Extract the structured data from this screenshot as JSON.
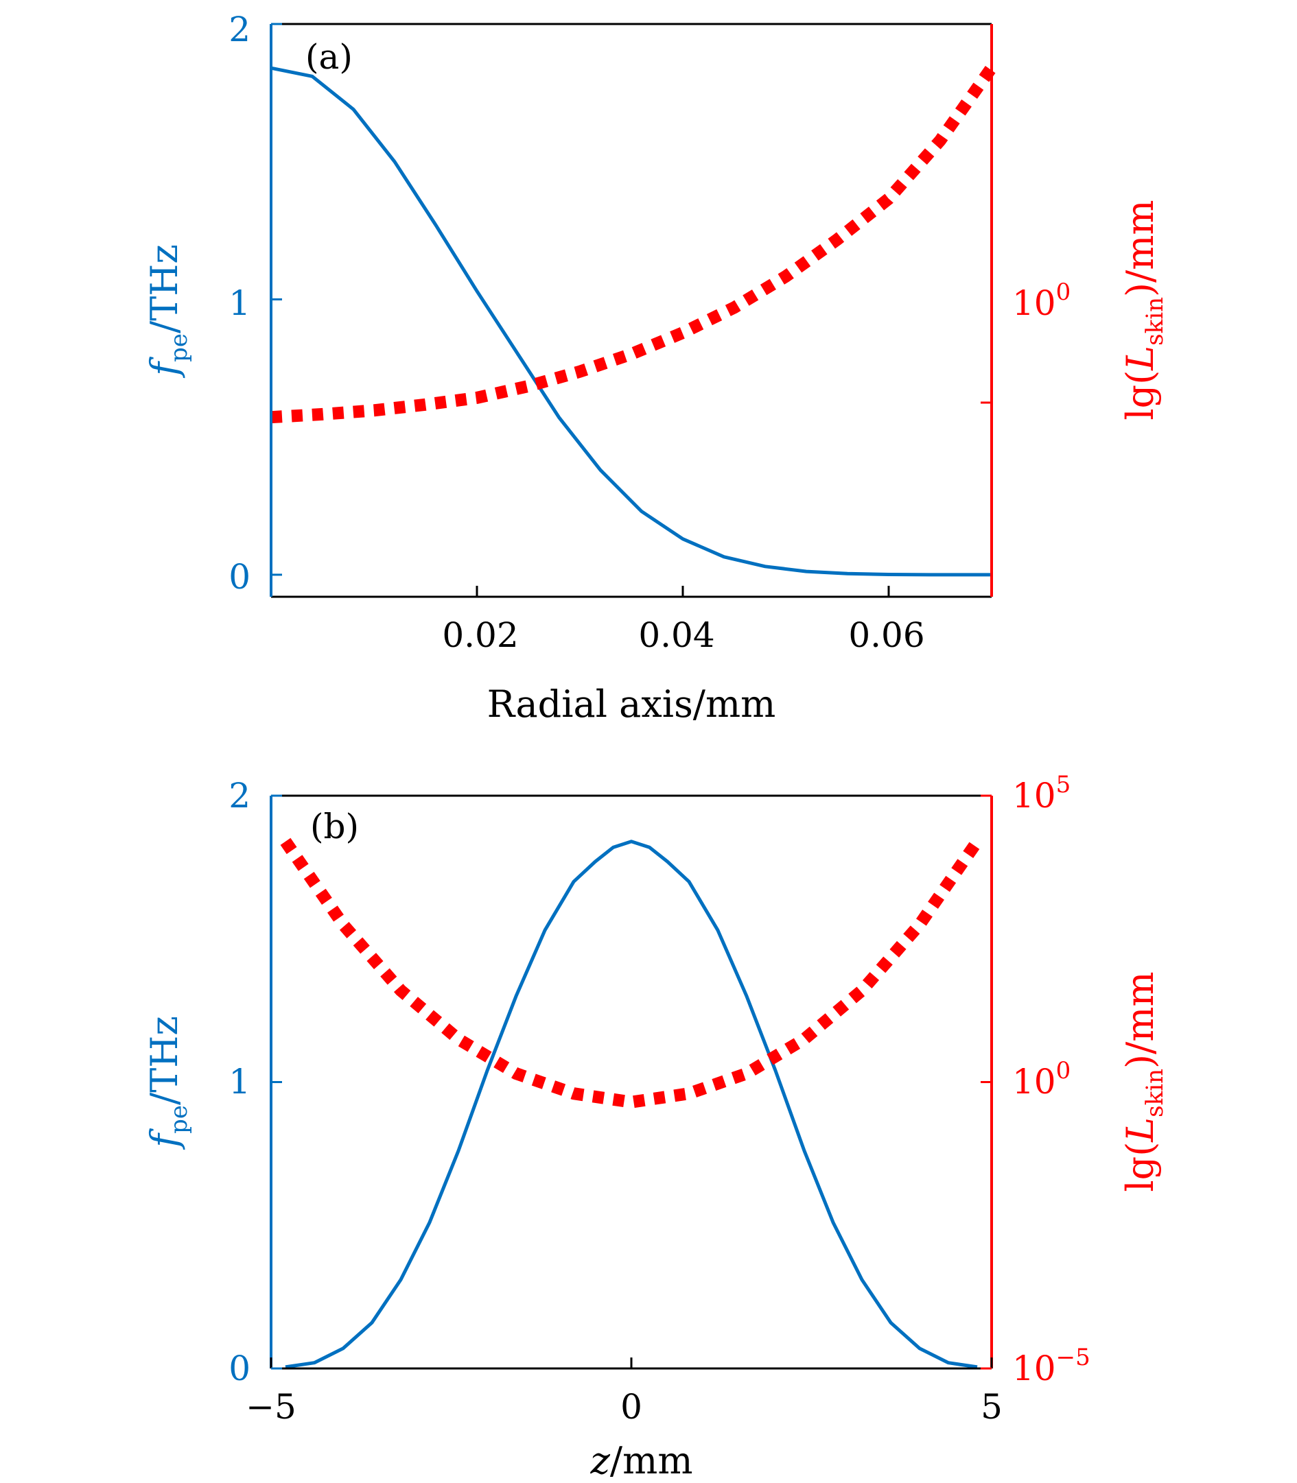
{
  "colors": {
    "fpe_line": "#0070c0",
    "lskin_line": "#ff0000",
    "frame": "#000000"
  },
  "chart_data": [
    {
      "type": "line",
      "panel_label": "(a)",
      "xlabel": "Radial axis/mm",
      "xlim": [
        0.0,
        0.07
      ],
      "xticks": [
        0.02,
        0.04,
        0.06
      ],
      "xtick_labels": [
        "0.02",
        "0.04",
        "0.06"
      ],
      "ylabel_left": {
        "main": "f",
        "sub": "pe",
        "unit": "/THz"
      },
      "ylim_left": [
        -0.08,
        2.0
      ],
      "yticks_left": [
        0,
        1,
        2
      ],
      "ytick_labels_left": [
        "0",
        "1",
        "2"
      ],
      "ylabel_right": {
        "pre": "lg(",
        "main": "L",
        "sub": "skin",
        "post": ")/mm"
      },
      "yscale_right": "log",
      "ylim_right_log10": [
        -2.0,
        3.9
      ],
      "yticks_right_log10": [
        0
      ],
      "ytick_labels_right": [
        {
          "base": "10",
          "exp": "0"
        }
      ],
      "series": [
        {
          "name": "f_pe",
          "axis": "left",
          "style": "solid",
          "x": [
            0.0,
            0.004,
            0.008,
            0.012,
            0.016,
            0.02,
            0.024,
            0.028,
            0.032,
            0.036,
            0.04,
            0.044,
            0.048,
            0.052,
            0.056,
            0.06,
            0.064,
            0.07
          ],
          "y": [
            1.84,
            1.81,
            1.69,
            1.5,
            1.27,
            1.03,
            0.8,
            0.57,
            0.38,
            0.23,
            0.13,
            0.065,
            0.03,
            0.012,
            0.004,
            0.001,
            0.0,
            0.0
          ]
        },
        {
          "name": "lg(L_skin)",
          "axis": "right",
          "style": "dotted",
          "x": [
            0.0,
            0.005,
            0.01,
            0.015,
            0.02,
            0.025,
            0.03,
            0.035,
            0.04,
            0.045,
            0.05,
            0.055,
            0.06,
            0.065,
            0.07
          ],
          "y": [
            -0.15,
            -0.12,
            -0.08,
            -0.02,
            0.05,
            0.17,
            0.32,
            0.5,
            0.72,
            0.98,
            1.3,
            1.68,
            2.1,
            2.7,
            3.45
          ]
        }
      ]
    },
    {
      "type": "line",
      "panel_label": "(b)",
      "xlabel": {
        "main": "z",
        "unit": "/mm"
      },
      "xlim": [
        -5.0,
        5.0
      ],
      "xticks": [
        -5,
        0,
        5
      ],
      "xtick_labels": [
        "−5",
        "0",
        "5"
      ],
      "ylabel_left": {
        "main": "f",
        "sub": "pe",
        "unit": "/THz"
      },
      "ylim_left": [
        0.0,
        2.0
      ],
      "yticks_left": [
        0,
        1,
        2
      ],
      "ytick_labels_left": [
        "0",
        "1",
        "2"
      ],
      "ylabel_right": {
        "pre": "lg(",
        "main": "L",
        "sub": "skin",
        "post": ")/mm"
      },
      "yscale_right": "log",
      "ylim_right_log10": [
        -5.0,
        5.0
      ],
      "yticks_right_log10": [
        -5,
        0,
        5
      ],
      "ytick_labels_right": [
        {
          "base": "10",
          "exp": "−5"
        },
        {
          "base": "10",
          "exp": "0"
        },
        {
          "base": "10",
          "exp": "5"
        }
      ],
      "series": [
        {
          "name": "f_pe",
          "axis": "left",
          "style": "solid",
          "x": [
            -4.8,
            -4.4,
            -4.0,
            -3.6,
            -3.2,
            -2.8,
            -2.4,
            -2.0,
            -1.6,
            -1.2,
            -0.8,
            -0.5,
            -0.25,
            0.0,
            0.25,
            0.5,
            0.8,
            1.2,
            1.6,
            2.0,
            2.4,
            2.8,
            3.2,
            3.6,
            4.0,
            4.4,
            4.8
          ],
          "y": [
            0.005,
            0.02,
            0.07,
            0.16,
            0.31,
            0.51,
            0.76,
            1.04,
            1.3,
            1.53,
            1.7,
            1.77,
            1.82,
            1.84,
            1.82,
            1.77,
            1.7,
            1.53,
            1.3,
            1.04,
            0.76,
            0.51,
            0.31,
            0.16,
            0.07,
            0.02,
            0.005
          ]
        },
        {
          "name": "lg(L_skin)",
          "axis": "right",
          "style": "dotted",
          "x": [
            -4.8,
            -4.0,
            -3.2,
            -2.4,
            -1.6,
            -0.8,
            0.0,
            0.8,
            1.6,
            2.4,
            3.2,
            4.0,
            4.8
          ],
          "y": [
            4.2,
            2.75,
            1.6,
            0.75,
            0.15,
            -0.2,
            -0.35,
            -0.2,
            0.15,
            0.75,
            1.6,
            2.75,
            4.2
          ]
        }
      ]
    }
  ]
}
